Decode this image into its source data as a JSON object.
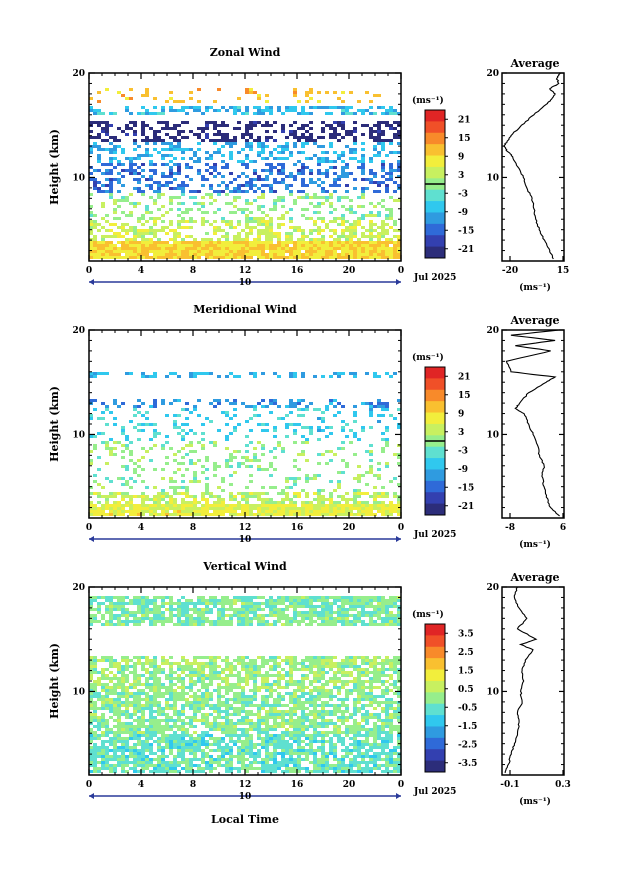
{
  "chart_data": [
    {
      "type": "heatmap",
      "title": "Zonal Wind",
      "ylabel": "Height (km)",
      "xlim": [
        0,
        24
      ],
      "ylim": [
        2,
        20
      ],
      "x_ticks": [
        "0",
        "4",
        "8",
        "12",
        "16",
        "20",
        "0"
      ],
      "y_ticks": [
        "20",
        "10"
      ],
      "date_axis": {
        "day_label": "10",
        "month_year": "Jul 2025"
      },
      "colorbar": {
        "unit": "(ms⁻¹)",
        "ticks": [
          "21",
          "15",
          "9",
          "3",
          "-3",
          "-9",
          "-15",
          "-21"
        ],
        "range": [
          -24,
          24
        ],
        "zero_contour": true
      },
      "bands": [
        {
          "z0": 2.2,
          "z1": 3.8,
          "value": 9,
          "density": 0.97
        },
        {
          "z0": 3.8,
          "z1": 6.0,
          "value": 4,
          "density": 0.55
        },
        {
          "z0": 6.0,
          "z1": 8.5,
          "value": 0,
          "density": 0.28
        },
        {
          "z0": 8.5,
          "z1": 11.5,
          "value": -14,
          "density": 0.45
        },
        {
          "z0": 11.5,
          "z1": 13.5,
          "value": -9,
          "density": 0.35
        },
        {
          "z0": 13.5,
          "z1": 15.5,
          "value": -23,
          "density": 0.45
        },
        {
          "z0": 16.0,
          "z1": 16.7,
          "value": -8,
          "density": 0.55
        },
        {
          "z0": 17.0,
          "z1": 18.6,
          "value": 11,
          "density": 0.15
        }
      ],
      "average": {
        "title": "Average",
        "xlim": [
          -20,
          15
        ],
        "x_ticks": [
          "-20",
          "15"
        ],
        "y_ticks": [
          "20",
          "10"
        ],
        "xlabel": "(ms⁻¹)",
        "height_km": [
          2.2,
          3,
          4,
          5,
          6,
          7,
          8,
          9,
          10,
          11,
          12,
          12.5,
          13,
          13.5,
          14,
          15,
          16,
          17,
          17.5,
          18,
          18.5,
          19,
          19.5,
          20
        ],
        "values": [
          9,
          7,
          4,
          1,
          -1,
          -2,
          -3,
          -6,
          -8,
          -11,
          -14,
          -17,
          -19,
          -17,
          -15,
          -9,
          -2,
          5,
          8,
          10,
          7,
          12,
          11,
          13
        ]
      }
    },
    {
      "type": "heatmap",
      "title": "Meridional Wind",
      "ylabel": "Height (km)",
      "xlim": [
        0,
        24
      ],
      "ylim": [
        2,
        20
      ],
      "x_ticks": [
        "0",
        "4",
        "8",
        "12",
        "16",
        "20",
        "0"
      ],
      "y_ticks": [
        "20",
        "10"
      ],
      "date_axis": {
        "day_label": "10",
        "month_year": "Jul 2025"
      },
      "colorbar": {
        "unit": "(ms⁻¹)",
        "ticks": [
          "21",
          "15",
          "9",
          "3",
          "-3",
          "-9",
          "-15",
          "-21"
        ],
        "range": [
          -24,
          24
        ],
        "zero_contour": true
      },
      "bands": [
        {
          "z0": 2.2,
          "z1": 3.2,
          "value": 6,
          "density": 0.95
        },
        {
          "z0": 3.2,
          "z1": 4.5,
          "value": 3,
          "density": 0.6
        },
        {
          "z0": 4.5,
          "z1": 9.5,
          "value": 0,
          "density": 0.2
        },
        {
          "z0": 9.5,
          "z1": 12.5,
          "value": -6,
          "density": 0.18
        },
        {
          "z0": 12.5,
          "z1": 13.5,
          "value": -12,
          "density": 0.3
        },
        {
          "z0": 15.5,
          "z1": 16.0,
          "value": -9,
          "density": 0.35
        }
      ],
      "average": {
        "title": "Average",
        "xlim": [
          -8,
          6
        ],
        "x_ticks": [
          "-8",
          "6"
        ],
        "y_ticks": [
          "20",
          "10"
        ],
        "xlabel": "(ms⁻¹)",
        "height_km": [
          2.2,
          3,
          4,
          5,
          6,
          7,
          8,
          9,
          10,
          11,
          12,
          12.5,
          13,
          14,
          15,
          15.5,
          16,
          17,
          18,
          18.5,
          19,
          19.5,
          20
        ],
        "values": [
          5,
          3,
          2,
          1.5,
          1,
          1.5,
          0.5,
          0,
          -1,
          -2,
          -3,
          -5,
          -4,
          -2,
          2,
          4,
          -6,
          -7,
          3,
          -5,
          4,
          -6,
          5
        ]
      }
    },
    {
      "type": "heatmap",
      "title": "Vertical Wind",
      "ylabel": "Height (km)",
      "xlabel": "Local Time",
      "xlim": [
        0,
        24
      ],
      "ylim": [
        2,
        20
      ],
      "x_ticks": [
        "0",
        "4",
        "8",
        "12",
        "16",
        "20",
        "0"
      ],
      "y_ticks": [
        "20",
        "10"
      ],
      "date_axis": {
        "day_label": "10",
        "month_year": "Jul 2025"
      },
      "colorbar": {
        "unit": "(ms⁻¹)",
        "ticks": [
          "3.5",
          "2.5",
          "1.5",
          "0.5",
          "-0.5",
          "-1.5",
          "-2.5",
          "-3.5"
        ],
        "range": [
          -4,
          4
        ],
        "zero_contour": false
      },
      "bands": [
        {
          "z0": 2.2,
          "z1": 6.0,
          "value": -0.5,
          "density": 0.78
        },
        {
          "z0": 6.0,
          "z1": 10.0,
          "value": -0.1,
          "density": 0.72
        },
        {
          "z0": 10.0,
          "z1": 13.5,
          "value": 0.1,
          "density": 0.7
        },
        {
          "z0": 16.2,
          "z1": 19.2,
          "value": -0.2,
          "density": 0.82
        }
      ],
      "average": {
        "title": "Average",
        "xlim": [
          -0.1,
          0.3
        ],
        "x_ticks": [
          "-0.1",
          "0.3"
        ],
        "y_ticks": [
          "20",
          "10"
        ],
        "xlabel": "(ms⁻¹)",
        "height_km": [
          2.2,
          3,
          4,
          5,
          6,
          7,
          8,
          9,
          10,
          11,
          12,
          13,
          14,
          14.5,
          15,
          16,
          17,
          18,
          19,
          20
        ],
        "values": [
          -0.08,
          -0.06,
          -0.04,
          -0.02,
          0.0,
          0.01,
          0.0,
          0.03,
          0.02,
          0.04,
          0.03,
          0.05,
          0.1,
          0.02,
          0.12,
          0.0,
          0.06,
          0.01,
          -0.02,
          0.0
        ]
      }
    }
  ],
  "colors": {
    "palette": [
      "#2c2d7a",
      "#3340b0",
      "#2f6ad8",
      "#2f9be0",
      "#30c8ee",
      "#5fe0d0",
      "#96ee8c",
      "#c8f060",
      "#f2ee3c",
      "#f9c030",
      "#f88a2a",
      "#f05028",
      "#e02525"
    ],
    "axis": "#000000",
    "time_bar": "#2a3a9a"
  }
}
